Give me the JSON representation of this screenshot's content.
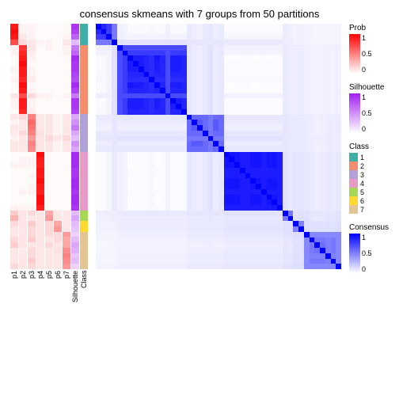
{
  "title": "consensus skmeans with 7 groups from 50 partitions",
  "layout": {
    "heatmap_size": 310,
    "rows": 46,
    "cols": 46
  },
  "colors": {
    "prob_low": "#ffffff",
    "prob_high": "#ff0000",
    "sil_low": "#ffffff",
    "sil_high": "#a020f0",
    "cons_low": "#ffffff",
    "cons_high": "#0000ff",
    "class": {
      "1": "#40b0a6",
      "2": "#f58c6b",
      "3": "#b0a2d8",
      "4": "#e89ac7",
      "5": "#a6d854",
      "6": "#ffd92f",
      "7": "#e5c494"
    }
  },
  "p_labels": [
    "p1",
    "p2",
    "p3",
    "p4",
    "p5",
    "p6",
    "p7"
  ],
  "extra_labels": [
    "Silhouette",
    "Class"
  ],
  "class_assignment": [
    1,
    1,
    1,
    1,
    2,
    2,
    2,
    2,
    2,
    2,
    2,
    2,
    2,
    2,
    2,
    2,
    2,
    3,
    3,
    3,
    3,
    3,
    3,
    3,
    4,
    4,
    4,
    4,
    4,
    4,
    4,
    4,
    4,
    4,
    4,
    5,
    5,
    6,
    6,
    7,
    7,
    7,
    7,
    7,
    7,
    7
  ],
  "silhouette": [
    0.9,
    0.85,
    0.7,
    0.3,
    0.6,
    0.7,
    0.95,
    0.9,
    0.9,
    0.85,
    0.8,
    0.95,
    0.85,
    0.6,
    0.9,
    0.9,
    0.85,
    0.4,
    0.5,
    0.6,
    0.4,
    0.3,
    0.5,
    0.4,
    0.95,
    0.95,
    0.95,
    0.9,
    0.9,
    0.95,
    0.95,
    0.9,
    0.95,
    0.95,
    0.9,
    0.3,
    0.4,
    0.3,
    0.25,
    0.2,
    0.3,
    0.4,
    0.35,
    0.25,
    0.3,
    0.2
  ],
  "prob_columns": [
    [
      0.9,
      0.95,
      0.9,
      0.7,
      0.05,
      0.05,
      0.02,
      0.02,
      0.05,
      0.02,
      0.05,
      0.02,
      0.02,
      0.1,
      0.05,
      0.05,
      0.02,
      0.1,
      0.05,
      0.1,
      0.08,
      0.05,
      0.1,
      0.1,
      0.02,
      0.02,
      0.05,
      0.02,
      0.02,
      0.02,
      0.02,
      0.02,
      0.02,
      0.02,
      0.05,
      0.2,
      0.3,
      0.15,
      0.1,
      0.1,
      0.15,
      0.2,
      0.1,
      0.1,
      0.1,
      0.15
    ],
    [
      0.05,
      0.05,
      0.1,
      0.15,
      0.8,
      0.85,
      0.9,
      0.95,
      0.9,
      0.9,
      0.85,
      0.95,
      0.9,
      0.7,
      0.9,
      0.9,
      0.85,
      0.15,
      0.1,
      0.1,
      0.15,
      0.1,
      0.1,
      0.1,
      0.02,
      0.05,
      0.05,
      0.02,
      0.02,
      0.02,
      0.02,
      0.05,
      0.02,
      0.02,
      0.05,
      0.1,
      0.1,
      0.1,
      0.1,
      0.1,
      0.1,
      0.1,
      0.08,
      0.1,
      0.1,
      0.1
    ],
    [
      0.05,
      0.05,
      0.05,
      0.1,
      0.1,
      0.08,
      0.05,
      0.02,
      0.05,
      0.05,
      0.08,
      0.02,
      0.05,
      0.15,
      0.05,
      0.05,
      0.08,
      0.5,
      0.6,
      0.55,
      0.5,
      0.4,
      0.5,
      0.45,
      0.02,
      0.05,
      0.05,
      0.02,
      0.05,
      0.02,
      0.05,
      0.05,
      0.02,
      0.02,
      0.05,
      0.15,
      0.1,
      0.2,
      0.15,
      0.15,
      0.2,
      0.1,
      0.15,
      0.15,
      0.2,
      0.15
    ],
    [
      0.02,
      0.02,
      0.02,
      0.05,
      0.02,
      0.02,
      0.02,
      0.02,
      0.02,
      0.02,
      0.02,
      0.02,
      0.02,
      0.05,
      0.02,
      0.02,
      0.02,
      0.1,
      0.1,
      0.1,
      0.12,
      0.1,
      0.1,
      0.1,
      0.95,
      0.9,
      0.88,
      0.92,
      0.9,
      0.95,
      0.9,
      0.88,
      0.95,
      0.95,
      0.88,
      0.1,
      0.1,
      0.1,
      0.1,
      0.1,
      0.1,
      0.1,
      0.1,
      0.1,
      0.1,
      0.1
    ],
    [
      0.02,
      0.02,
      0.02,
      0.05,
      0.05,
      0.02,
      0.02,
      0.02,
      0.02,
      0.02,
      0.02,
      0.02,
      0.02,
      0.05,
      0.02,
      0.02,
      0.02,
      0.1,
      0.1,
      0.1,
      0.1,
      0.15,
      0.1,
      0.1,
      0.02,
      0.02,
      0.02,
      0.02,
      0.02,
      0.02,
      0.02,
      0.02,
      0.02,
      0.02,
      0.02,
      0.35,
      0.4,
      0.15,
      0.15,
      0.15,
      0.1,
      0.15,
      0.1,
      0.1,
      0.1,
      0.1
    ],
    [
      0.02,
      0.02,
      0.02,
      0.02,
      0.02,
      0.02,
      0.02,
      0.02,
      0.02,
      0.02,
      0.02,
      0.02,
      0.02,
      0.02,
      0.02,
      0.02,
      0.02,
      0.05,
      0.05,
      0.05,
      0.05,
      0.1,
      0.05,
      0.05,
      0.02,
      0.02,
      0.02,
      0.02,
      0.02,
      0.02,
      0.02,
      0.02,
      0.02,
      0.02,
      0.02,
      0.1,
      0.1,
      0.35,
      0.4,
      0.15,
      0.15,
      0.1,
      0.12,
      0.1,
      0.1,
      0.1
    ],
    [
      0.02,
      0.02,
      0.05,
      0.1,
      0.05,
      0.05,
      0.02,
      0.02,
      0.02,
      0.02,
      0.02,
      0.02,
      0.02,
      0.05,
      0.02,
      0.02,
      0.02,
      0.1,
      0.1,
      0.1,
      0.1,
      0.15,
      0.1,
      0.1,
      0.02,
      0.02,
      0.02,
      0.02,
      0.02,
      0.02,
      0.02,
      0.02,
      0.02,
      0.02,
      0.02,
      0.1,
      0.1,
      0.1,
      0.1,
      0.4,
      0.35,
      0.35,
      0.45,
      0.5,
      0.45,
      0.4
    ]
  ],
  "legends": {
    "prob": {
      "title": "Prob",
      "ticks": [
        "1",
        "0.5",
        "0"
      ]
    },
    "silhouette": {
      "title": "Silhouette",
      "ticks": [
        "1",
        "0.5",
        "0"
      ]
    },
    "class": {
      "title": "Class",
      "items": [
        "1",
        "2",
        "3",
        "4",
        "5",
        "6",
        "7"
      ]
    },
    "consensus": {
      "title": "Consensus",
      "ticks": [
        "1",
        "0.5",
        "0"
      ]
    }
  }
}
